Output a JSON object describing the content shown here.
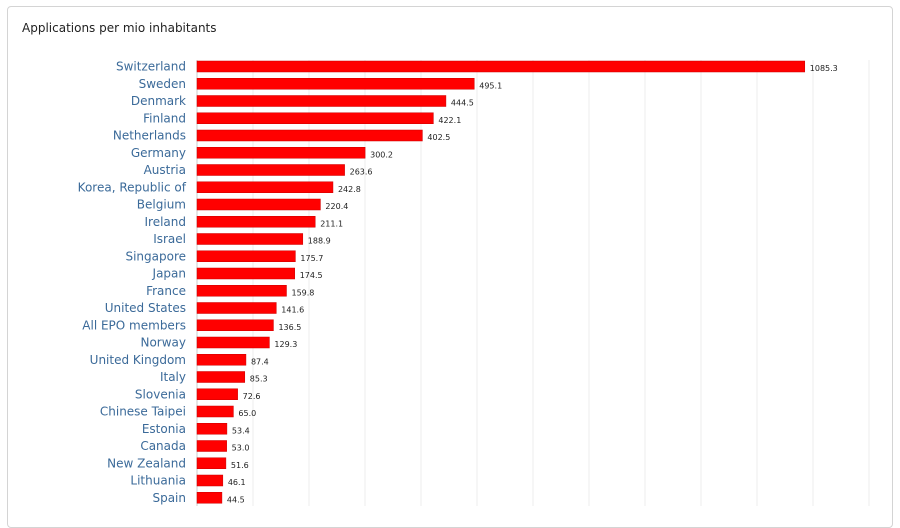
{
  "chart_data": {
    "type": "bar",
    "orientation": "horizontal",
    "title": "Applications per mio inhabitants",
    "categories": [
      "Switzerland",
      "Sweden",
      "Denmark",
      "Finland",
      "Netherlands",
      "Germany",
      "Austria",
      "Korea, Republic of",
      "Belgium",
      "Ireland",
      "Israel",
      "Singapore",
      "Japan",
      "France",
      "United States",
      "All EPO members",
      "Norway",
      "United Kingdom",
      "Italy",
      "Slovenia",
      "Chinese Taipei",
      "Estonia",
      "Canada",
      "New Zealand",
      "Lithuania",
      "Spain"
    ],
    "values": [
      1085.3,
      495.1,
      444.5,
      422.1,
      402.5,
      300.2,
      263.6,
      242.8,
      220.4,
      211.1,
      188.9,
      175.7,
      174.5,
      159.8,
      141.6,
      136.5,
      129.3,
      87.4,
      85.3,
      72.6,
      65.0,
      53.4,
      53.0,
      51.6,
      46.1,
      44.5
    ],
    "xlim": [
      0,
      1200
    ],
    "grid": true,
    "bar_color": "#ff0000",
    "category_label_color": "#3b6a99"
  }
}
